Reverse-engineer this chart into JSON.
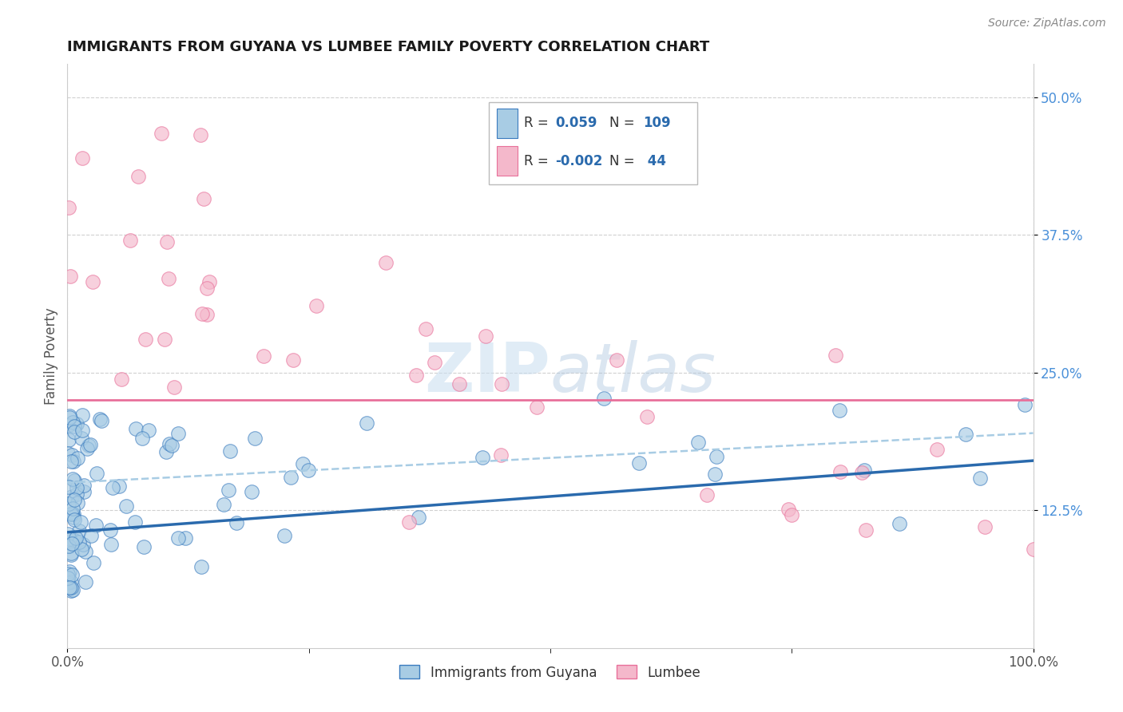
{
  "title": "IMMIGRANTS FROM GUYANA VS LUMBEE FAMILY POVERTY CORRELATION CHART",
  "source": "Source: ZipAtlas.com",
  "x_min": 0.0,
  "x_max": 100.0,
  "y_min": 0.0,
  "y_max": 53.0,
  "color_blue_fill": "#a8cce4",
  "color_blue_edge": "#3a7bbf",
  "color_pink_fill": "#f4b8cb",
  "color_pink_edge": "#e8709a",
  "color_trend_blue": "#2a6aad",
  "color_trend_pink": "#e8709a",
  "series1_label": "Immigrants from Guyana",
  "series2_label": "Lumbee",
  "r1": 0.059,
  "n1": 109,
  "r2": -0.002,
  "n2": 44,
  "ytick_vals": [
    12.5,
    25.0,
    37.5,
    50.0
  ],
  "ytick_labels": [
    "12.5%",
    "25.0%",
    "37.5%",
    "50.0%"
  ],
  "xtick_vals": [
    0,
    100
  ],
  "xtick_labels": [
    "0.0%",
    "100.0%"
  ],
  "watermark": "ZIPatlas",
  "legend_r1_label": "R =",
  "legend_r1_val": "0.059",
  "legend_n1_label": "N =",
  "legend_n1_val": "109",
  "legend_r2_label": "R =",
  "legend_r2_val": "-0.002",
  "legend_n2_label": "N =",
  "legend_n2_val": "44",
  "blue_trend_y0": 10.5,
  "blue_trend_y1": 17.0,
  "pink_trend_y": 22.5,
  "pink_dashed_y0": 15.0,
  "pink_dashed_y1": 19.5
}
